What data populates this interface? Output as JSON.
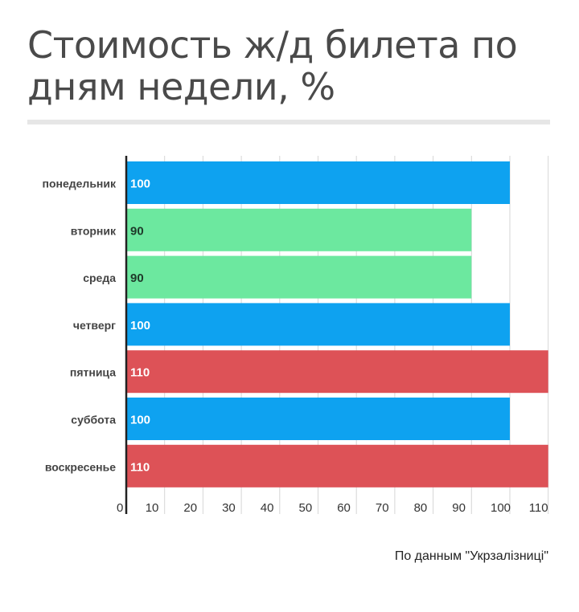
{
  "title": "Стоимость ж/д билета по дням недели, %",
  "source": "По данным \"Укрзалізниці\"",
  "colors": {
    "base": "#0ea2f0",
    "low": "#6ce89f",
    "high": "#dd5257",
    "grid": "#d6d6d6",
    "axis": "#222222",
    "title_rule": "#e6e6e6"
  },
  "chart_data": {
    "type": "bar",
    "orientation": "horizontal",
    "title": "Стоимость ж/д билета по дням недели, %",
    "categories": [
      "понедельник",
      "вторник",
      "среда",
      "четверг",
      "пятница",
      "суббота",
      "воскресенье"
    ],
    "values": [
      100,
      90,
      90,
      100,
      110,
      100,
      110
    ],
    "bar_colors": [
      "#0ea2f0",
      "#6ce89f",
      "#6ce89f",
      "#0ea2f0",
      "#dd5257",
      "#0ea2f0",
      "#dd5257"
    ],
    "data_labels": [
      "100",
      "90",
      "90",
      "100",
      "110",
      "100",
      "110"
    ],
    "x_ticks": [
      0,
      10,
      20,
      30,
      40,
      50,
      60,
      70,
      80,
      90,
      100,
      110
    ],
    "xlim": [
      0,
      110
    ],
    "xlabel": "",
    "ylabel": "",
    "grid": true,
    "legend": "none"
  }
}
